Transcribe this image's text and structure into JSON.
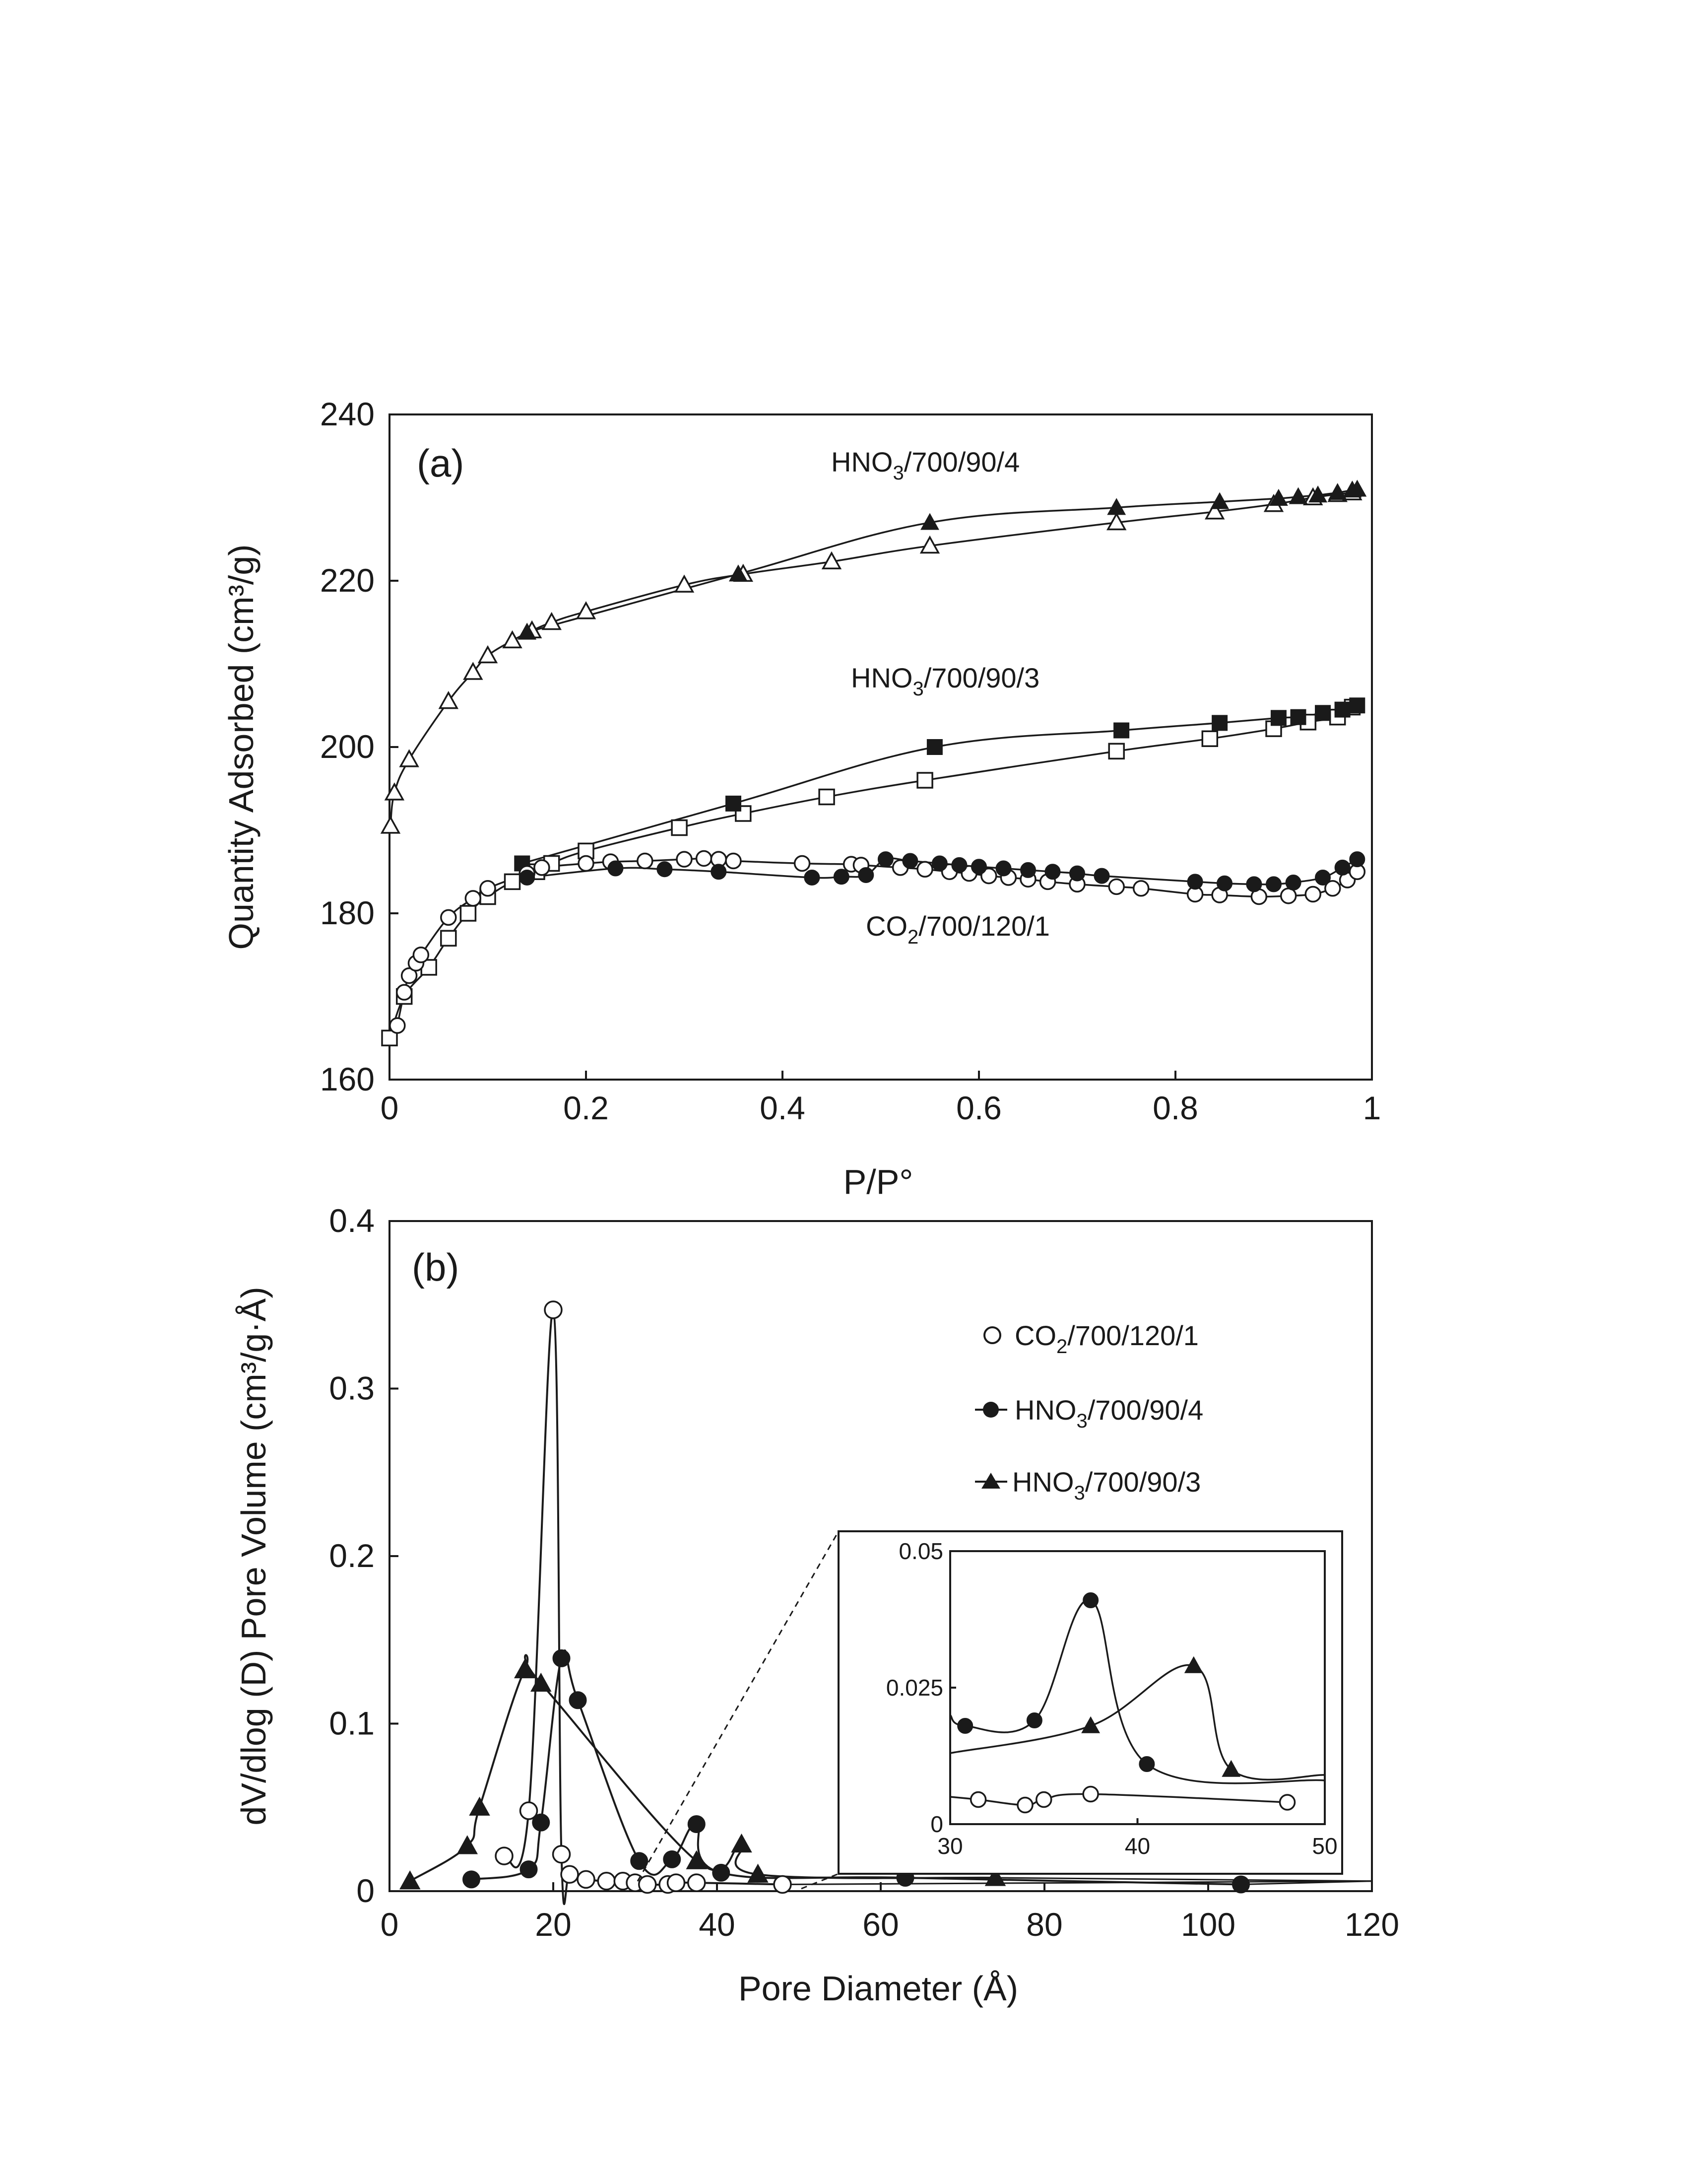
{
  "colors": {
    "ink": "#1a1a1a",
    "background": "#ffffff"
  },
  "chart_data": [
    {
      "type": "scatter",
      "panel_label": "(a)",
      "xlabel": "P/P°",
      "ylabel": "Quantity Adsorbed (cm³/g)",
      "xlim": [
        0,
        1
      ],
      "ylim": [
        160,
        240
      ],
      "xticks": [
        "0",
        "0.2",
        "0.4",
        "0.6",
        "0.8",
        "1"
      ],
      "yticks": [
        "160",
        "180",
        "200",
        "220",
        "240"
      ],
      "grid": false,
      "series_labels": [
        {
          "id": "hno3_4",
          "base": "HNO",
          "sub": "3",
          "rest": "/700/90/4"
        },
        {
          "id": "hno3_3",
          "base": "HNO",
          "sub": "3",
          "rest": "/700/90/3"
        },
        {
          "id": "co2",
          "base": "CO",
          "sub": "2",
          "rest": "/700/120/1"
        }
      ],
      "series": [
        {
          "name": "HNO3/700/90/4",
          "branch": "adsorption",
          "marker": "triangle-open",
          "x": [
            0.001,
            0.005,
            0.02,
            0.06,
            0.085,
            0.1,
            0.125,
            0.145,
            0.165,
            0.2,
            0.3,
            0.36,
            0.45,
            0.55,
            0.74,
            0.84,
            0.9,
            0.94,
            0.965,
            0.98
          ],
          "y": [
            190.5,
            194.5,
            198.5,
            205.5,
            209.0,
            211.0,
            212.8,
            214.0,
            215.0,
            216.3,
            219.5,
            220.8,
            222.3,
            224.2,
            227.0,
            228.3,
            229.2,
            230.0,
            230.4,
            230.6
          ]
        },
        {
          "name": "HNO3/700/90/4",
          "branch": "desorption",
          "marker": "triangle-filled",
          "x": [
            0.14,
            0.355,
            0.55,
            0.74,
            0.845,
            0.905,
            0.925,
            0.945,
            0.965,
            0.98,
            0.985
          ],
          "y": [
            213.8,
            220.8,
            227.0,
            228.8,
            229.5,
            229.9,
            230.1,
            230.3,
            230.6,
            230.9,
            231.0
          ]
        },
        {
          "name": "HNO3/700/90/3",
          "branch": "adsorption",
          "marker": "square-open",
          "x": [
            0.0,
            0.015,
            0.04,
            0.06,
            0.08,
            0.1,
            0.125,
            0.15,
            0.165,
            0.2,
            0.295,
            0.36,
            0.445,
            0.545,
            0.74,
            0.835,
            0.9,
            0.935,
            0.965,
            0.98
          ],
          "y": [
            165.0,
            170.0,
            173.5,
            177.0,
            180.0,
            182.0,
            183.8,
            185.0,
            186.0,
            187.5,
            190.3,
            192.0,
            194.0,
            196.0,
            199.5,
            201.0,
            202.2,
            203.0,
            203.6,
            204.8
          ]
        },
        {
          "name": "HNO3/700/90/3",
          "branch": "desorption",
          "marker": "square-filled",
          "x": [
            0.135,
            0.35,
            0.555,
            0.745,
            0.845,
            0.905,
            0.925,
            0.95,
            0.97,
            0.985
          ],
          "y": [
            186.0,
            193.2,
            200.0,
            202.0,
            202.9,
            203.5,
            203.6,
            204.1,
            204.5,
            205.0
          ]
        },
        {
          "name": "CO2/700/120/1",
          "branch": "adsorption",
          "marker": "circle-open",
          "x": [
            0.008,
            0.015,
            0.02,
            0.027,
            0.032,
            0.06,
            0.085,
            0.1,
            0.14,
            0.155,
            0.2,
            0.225,
            0.26,
            0.3,
            0.32,
            0.335,
            0.35,
            0.42,
            0.47,
            0.48,
            0.52,
            0.545,
            0.57,
            0.59,
            0.61,
            0.63,
            0.65,
            0.67,
            0.7,
            0.74,
            0.765,
            0.82,
            0.845,
            0.885,
            0.915,
            0.94,
            0.96,
            0.975,
            0.985
          ],
          "y": [
            166.5,
            170.5,
            172.5,
            174.0,
            175.0,
            179.5,
            181.8,
            183.0,
            184.8,
            185.5,
            186.0,
            186.2,
            186.3,
            186.5,
            186.6,
            186.5,
            186.3,
            186.0,
            185.9,
            185.8,
            185.5,
            185.3,
            185.0,
            184.8,
            184.5,
            184.3,
            184.1,
            183.8,
            183.5,
            183.2,
            183.0,
            182.3,
            182.2,
            182.0,
            182.1,
            182.3,
            183.0,
            184.0,
            185.0
          ]
        },
        {
          "name": "CO2/700/120/1",
          "branch": "desorption",
          "marker": "circle-filled",
          "x": [
            0.14,
            0.23,
            0.28,
            0.335,
            0.43,
            0.46,
            0.485,
            0.505,
            0.53,
            0.56,
            0.58,
            0.6,
            0.625,
            0.65,
            0.675,
            0.7,
            0.725,
            0.82,
            0.85,
            0.88,
            0.9,
            0.92,
            0.95,
            0.97,
            0.985
          ],
          "y": [
            184.3,
            185.4,
            185.3,
            185.0,
            184.3,
            184.4,
            184.6,
            186.5,
            186.3,
            186.0,
            185.8,
            185.6,
            185.4,
            185.2,
            185.0,
            184.8,
            184.5,
            183.8,
            183.6,
            183.5,
            183.5,
            183.7,
            184.3,
            185.5,
            186.5
          ]
        }
      ]
    },
    {
      "type": "line",
      "panel_label": "(b)",
      "xlabel": "Pore Diameter (Å)",
      "ylabel": "dV/dlog (D) Pore Volume (cm³/g·Å)",
      "xlim": [
        0,
        120
      ],
      "ylim": [
        0,
        0.4
      ],
      "xticks": [
        "0",
        "20",
        "40",
        "60",
        "80",
        "100",
        "120"
      ],
      "yticks": [
        "0",
        "0.1",
        "0.2",
        "0.3",
        "0.4"
      ],
      "grid": false,
      "legend_position": "upper-right",
      "legend": [
        {
          "id": "co2",
          "base": "CO",
          "sub": "2",
          "rest": "/700/120/1",
          "marker": "circle-open"
        },
        {
          "id": "hno3_4",
          "base": "HNO",
          "sub": "3",
          "rest": "/700/90/4",
          "marker": "circle-filled"
        },
        {
          "id": "hno3_3",
          "base": "HNO",
          "sub": "3",
          "rest": "/700/90/3",
          "marker": "triangle-filled"
        }
      ],
      "series": [
        {
          "name": "CO2/700/120/1",
          "marker": "circle-open",
          "x": [
            14,
            17,
            20,
            21,
            22,
            24,
            26.5,
            28.5,
            30,
            31.5,
            34,
            35,
            37.5,
            48
          ],
          "y": [
            0.021,
            0.048,
            0.347,
            0.022,
            0.01,
            0.007,
            0.006,
            0.006,
            0.005,
            0.004,
            0.004,
            0.005,
            0.005,
            0.004
          ]
        },
        {
          "name": "HNO3/700/90/4",
          "marker": "circle-filled",
          "x": [
            10,
            17,
            18.5,
            21,
            23,
            30.5,
            34.5,
            37.5,
            40.5,
            63,
            104
          ],
          "y": [
            0.007,
            0.013,
            0.041,
            0.139,
            0.114,
            0.018,
            0.019,
            0.04,
            0.011,
            0.008,
            0.004
          ]
        },
        {
          "name": "HNO3/700/90/3",
          "marker": "triangle-filled",
          "x": [
            2.5,
            9.5,
            11,
            16.5,
            18.5,
            37.5,
            43,
            45,
            74
          ],
          "y": [
            0.006,
            0.027,
            0.05,
            0.132,
            0.124,
            0.018,
            0.028,
            0.01,
            0.008
          ]
        }
      ],
      "inset": {
        "xlim": [
          30,
          50
        ],
        "ylim": [
          0,
          0.05
        ],
        "xticks": [
          "30",
          "40",
          "50"
        ],
        "yticks": [
          "0",
          "0.025",
          "0.05"
        ],
        "series": [
          {
            "name": "CO2/700/120/1",
            "marker": "circle-open",
            "x": [
              30,
              31.5,
              34,
              35,
              37.5,
              48
            ],
            "y": [
              0.005,
              0.0045,
              0.0035,
              0.0045,
              0.0055,
              0.004
            ]
          },
          {
            "name": "HNO3/700/90/4",
            "marker": "circle-filled",
            "x": [
              30,
              30.8,
              34.5,
              37.5,
              40.5,
              50
            ],
            "y": [
              0.02,
              0.018,
              0.019,
              0.041,
              0.011,
              0.008
            ]
          },
          {
            "name": "HNO3/700/90/3",
            "marker": "triangle-filled",
            "x": [
              30,
              37.5,
              43,
              45,
              50
            ],
            "y": [
              0.013,
              0.018,
              0.029,
              0.01,
              0.009
            ]
          }
        ]
      }
    }
  ]
}
